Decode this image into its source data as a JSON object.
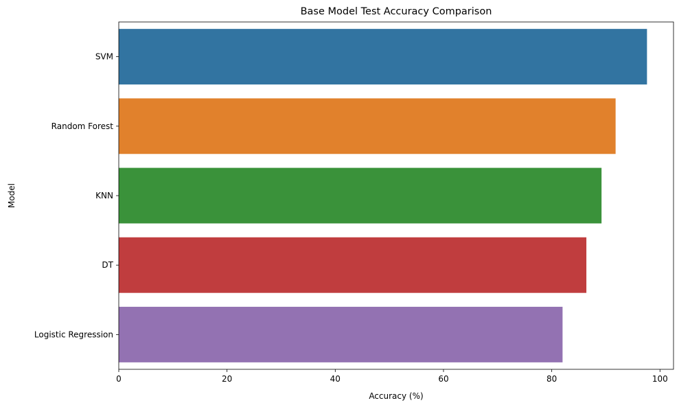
{
  "chart_data": {
    "type": "bar",
    "orientation": "horizontal",
    "title": "Base Model Test Accuracy Comparison",
    "xlabel": "Accuracy (%)",
    "ylabel": "Model",
    "xlim": [
      0,
      102.5
    ],
    "xticks": [
      0,
      20,
      40,
      60,
      80,
      100
    ],
    "grid": false,
    "categories": [
      "SVM",
      "Random Forest",
      "KNN",
      "DT",
      "Logistic Regression"
    ],
    "values": [
      97.6,
      91.8,
      89.2,
      86.4,
      82.0
    ],
    "colors": [
      "#3274a1",
      "#e1812c",
      "#3a923a",
      "#c03d3e",
      "#9372b2"
    ]
  }
}
